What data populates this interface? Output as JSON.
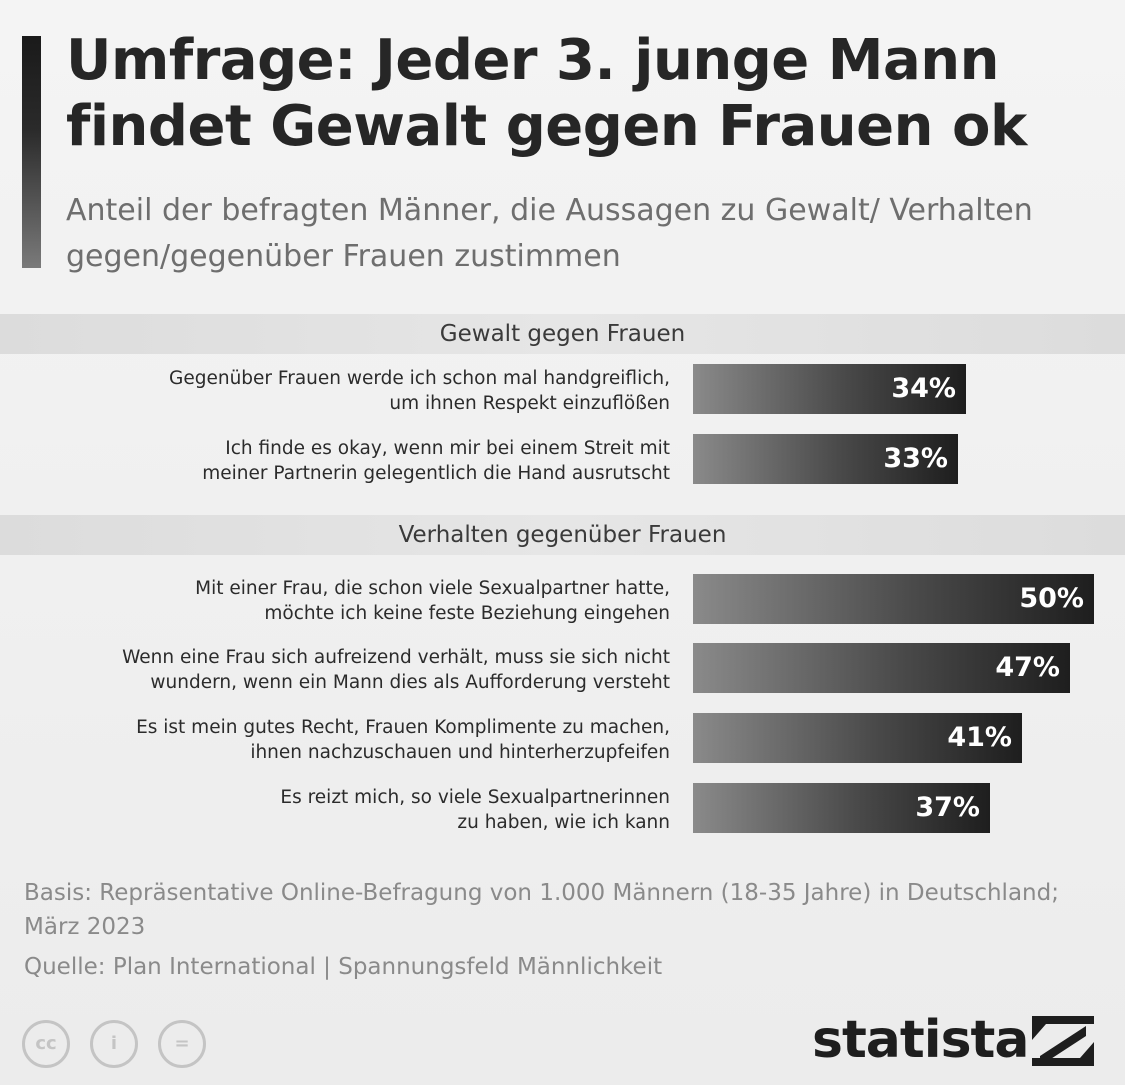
{
  "title": "Umfrage: Jeder 3. junge Mann findet Gewalt gegen Frauen ok",
  "subtitle": "Anteil der befragten Männer, die Aussagen zu Gewalt/ Verhalten gegen/gegenüber Frauen zustimmen",
  "chart_data": {
    "type": "bar",
    "orientation": "horizontal",
    "unit": "%",
    "xlim": [
      0,
      50
    ],
    "groups": [
      {
        "name": "Gewalt gegen Frauen",
        "items": [
          {
            "label_lines": [
              "Gegenüber Frauen werde ich schon mal handgreiflich,",
              "um ihnen Respekt einzuflößen"
            ],
            "value": 34,
            "value_label": "34%"
          },
          {
            "label_lines": [
              "Ich finde es okay, wenn mir bei einem Streit mit",
              "meiner Partnerin gelegentlich die Hand ausrutscht"
            ],
            "value": 33,
            "value_label": "33%"
          }
        ]
      },
      {
        "name": "Verhalten gegenüber Frauen",
        "items": [
          {
            "label_lines": [
              "Mit einer Frau, die schon viele Sexualpartner hatte,",
              "möchte ich keine feste Beziehung eingehen"
            ],
            "value": 50,
            "value_label": "50%"
          },
          {
            "label_lines": [
              "Wenn eine Frau sich aufreizend verhält, muss sie sich nicht",
              "wundern, wenn ein Mann dies als Aufforderung versteht"
            ],
            "value": 47,
            "value_label": "47%"
          },
          {
            "label_lines": [
              "Es ist mein gutes Recht, Frauen Komplimente zu machen,",
              "ihnen nachzuschauen und hinterherzupfeifen"
            ],
            "value": 41,
            "value_label": "41%"
          },
          {
            "label_lines": [
              "Es reizt mich, so viele Sexualpartnerinnen",
              "zu haben, wie ich kann"
            ],
            "value": 37,
            "value_label": "37%"
          }
        ]
      }
    ]
  },
  "footer": {
    "basis": "Basis: Repräsentative Online-Befragung von 1.000 Männern (18-35 Jahre) in Deutschland; März 2023",
    "source": "Quelle: Plan International | Spannungsfeld Männlichkeit",
    "license_icons": [
      {
        "name": "cc-icon",
        "glyph": "cc"
      },
      {
        "name": "attribution-icon",
        "glyph": "i"
      },
      {
        "name": "no-derivatives-icon",
        "glyph": "="
      }
    ],
    "brand": "statista"
  }
}
